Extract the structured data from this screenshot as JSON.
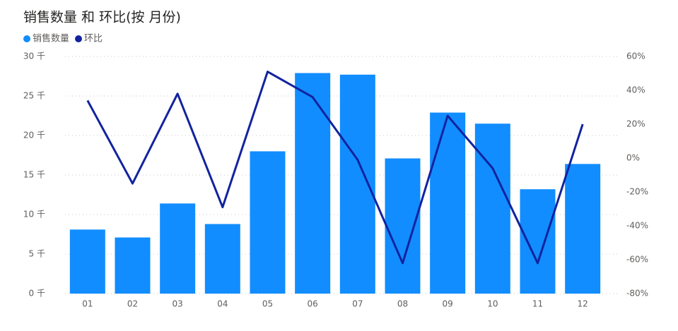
{
  "chart_data": {
    "type": "bar-line",
    "title": "销售数量 和 环比(按 月份)",
    "categories": [
      "01",
      "02",
      "03",
      "04",
      "05",
      "06",
      "07",
      "08",
      "09",
      "10",
      "11",
      "12"
    ],
    "series": [
      {
        "name": "销售数量",
        "color": "#118DFF",
        "type": "bar",
        "axis": "y",
        "values": [
          8100,
          7100,
          11400,
          8800,
          18000,
          27900,
          27700,
          17100,
          22900,
          21500,
          13200,
          16400
        ]
      },
      {
        "name": "环比",
        "color": "#12239E",
        "type": "line",
        "axis": "y2",
        "values": [
          34,
          -15,
          38,
          -29,
          51,
          36,
          -1,
          -62,
          25,
          -6,
          -62,
          20
        ]
      }
    ],
    "ylim": [
      0,
      30000
    ],
    "yticks": [
      {
        "value": 0,
        "label": "0 千"
      },
      {
        "value": 5000,
        "label": "5 千"
      },
      {
        "value": 10000,
        "label": "10 千"
      },
      {
        "value": 15000,
        "label": "15 千"
      },
      {
        "value": 20000,
        "label": "20 千"
      },
      {
        "value": 25000,
        "label": "25 千"
      },
      {
        "value": 30000,
        "label": "30 千"
      }
    ],
    "y2lim": [
      -80,
      60
    ],
    "y2ticks": [
      {
        "value": -80,
        "label": "-80%"
      },
      {
        "value": -60,
        "label": "-60%"
      },
      {
        "value": -40,
        "label": "-40%"
      },
      {
        "value": -20,
        "label": "-20%"
      },
      {
        "value": 0,
        "label": "0%"
      },
      {
        "value": 20,
        "label": "20%"
      },
      {
        "value": 40,
        "label": "40%"
      },
      {
        "value": 60,
        "label": "60%"
      }
    ],
    "grid": true
  }
}
